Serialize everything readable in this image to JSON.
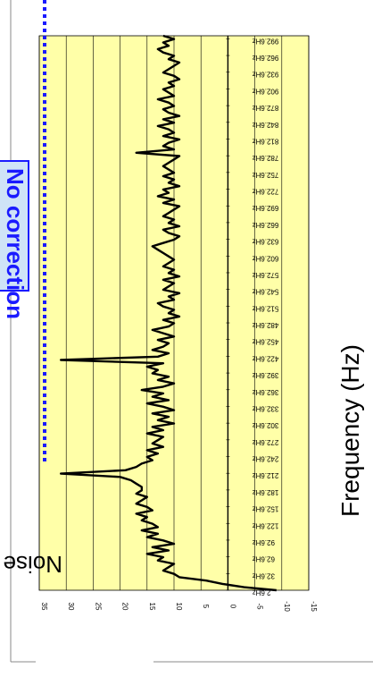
{
  "chart_data": {
    "type": "line",
    "title": "",
    "xlabel": "Frequency (Hz)",
    "ylabel": "Noise Level (dB)",
    "annotation": "No correction",
    "xlim": [
      2.6,
      998
    ],
    "ylim": [
      -15,
      35
    ],
    "yticks": [
      35,
      30,
      25,
      20,
      15,
      10,
      5,
      0,
      -5,
      -10,
      -15
    ],
    "xtick_labels": [
      "2.6Hz",
      "32.6Hz",
      "62.6Hz",
      "92.6Hz",
      "122.6Hz",
      "152.6Hz",
      "182.6Hz",
      "212.6Hz",
      "242.6Hz",
      "272.6Hz",
      "302.6Hz",
      "332.6Hz",
      "362.6Hz",
      "392.6Hz",
      "422.6Hz",
      "452.6Hz",
      "482.6Hz",
      "512.6Hz",
      "542.6Hz",
      "572.6Hz",
      "602.6Hz",
      "632.6Hz",
      "662.6Hz",
      "692.6Hz",
      "722.6Hz",
      "752.6Hz",
      "782.6Hz",
      "812.6Hz",
      "842.6Hz",
      "872.6Hz",
      "902.6Hz",
      "932.6Hz",
      "962.6Hz",
      "992.6Hz"
    ],
    "grid": true,
    "series": [
      {
        "x": [
          2.6,
          8,
          14,
          20,
          26,
          32,
          38,
          44,
          50,
          56,
          62,
          68,
          74,
          80,
          86,
          92,
          98,
          104,
          110,
          116,
          122,
          128,
          134,
          140,
          146,
          152,
          158,
          164,
          170,
          176,
          182,
          188,
          194,
          200,
          206,
          212,
          218,
          224,
          230,
          236,
          242,
          248,
          254,
          260,
          266,
          272,
          278,
          284,
          290,
          296,
          302,
          308,
          314,
          320,
          326,
          332,
          338,
          344,
          350,
          356,
          362,
          368,
          374,
          380,
          386,
          392,
          398,
          404,
          410,
          416,
          422,
          428,
          434,
          440,
          446,
          452,
          458,
          464,
          470,
          476,
          482,
          488,
          494,
          500,
          506,
          512,
          518,
          524,
          530,
          536,
          542,
          548,
          554,
          560,
          566,
          572,
          578,
          584,
          590,
          596,
          602,
          608,
          614,
          620,
          626,
          632,
          638,
          644,
          650,
          656,
          662,
          668,
          674,
          680,
          686,
          692,
          698,
          704,
          710,
          716,
          722,
          728,
          734,
          740,
          746,
          752,
          758,
          764,
          770,
          776,
          782,
          788,
          794,
          800,
          806,
          812,
          818,
          824,
          830,
          836,
          842,
          848,
          854,
          860,
          866,
          872,
          878,
          884,
          890,
          896,
          902,
          908,
          914,
          920,
          926,
          932,
          938,
          944,
          950,
          956,
          962,
          968,
          974,
          980,
          986,
          992,
          998
        ],
        "values": [
          -9,
          -3,
          1,
          4,
          9,
          10,
          12,
          11,
          10,
          13,
          12,
          15,
          11,
          14,
          10,
          12,
          15,
          13,
          16,
          13,
          14,
          16,
          15,
          17,
          14,
          15,
          17,
          16,
          15,
          17,
          16,
          16,
          17,
          18,
          20,
          31,
          19,
          17,
          16,
          14,
          15,
          13,
          15,
          12,
          14,
          13,
          12,
          15,
          12,
          14,
          10,
          13,
          11,
          14,
          10,
          12,
          15,
          11,
          14,
          12,
          16,
          12,
          10,
          13,
          11,
          14,
          13,
          15,
          12,
          31,
          13,
          11,
          14,
          12,
          11,
          13,
          10,
          12,
          14,
          11,
          10,
          12,
          9,
          11,
          10,
          12,
          13,
          10,
          11,
          9,
          12,
          11,
          10,
          12,
          9,
          11,
          10,
          12,
          11,
          10,
          11,
          12,
          13,
          14,
          12,
          10,
          9,
          11,
          12,
          9,
          11,
          10,
          12,
          11,
          10,
          9,
          12,
          10,
          13,
          11,
          12,
          9,
          11,
          10,
          12,
          10,
          11,
          12,
          11,
          10,
          9,
          17,
          10,
          12,
          11,
          9,
          12,
          10,
          11,
          13,
          10,
          12,
          9,
          11,
          12,
          10,
          11,
          13,
          10,
          11,
          12,
          10,
          11,
          9,
          10,
          12,
          11,
          10,
          9,
          11,
          10,
          12,
          13,
          11,
          12,
          10,
          12
        ]
      }
    ]
  }
}
